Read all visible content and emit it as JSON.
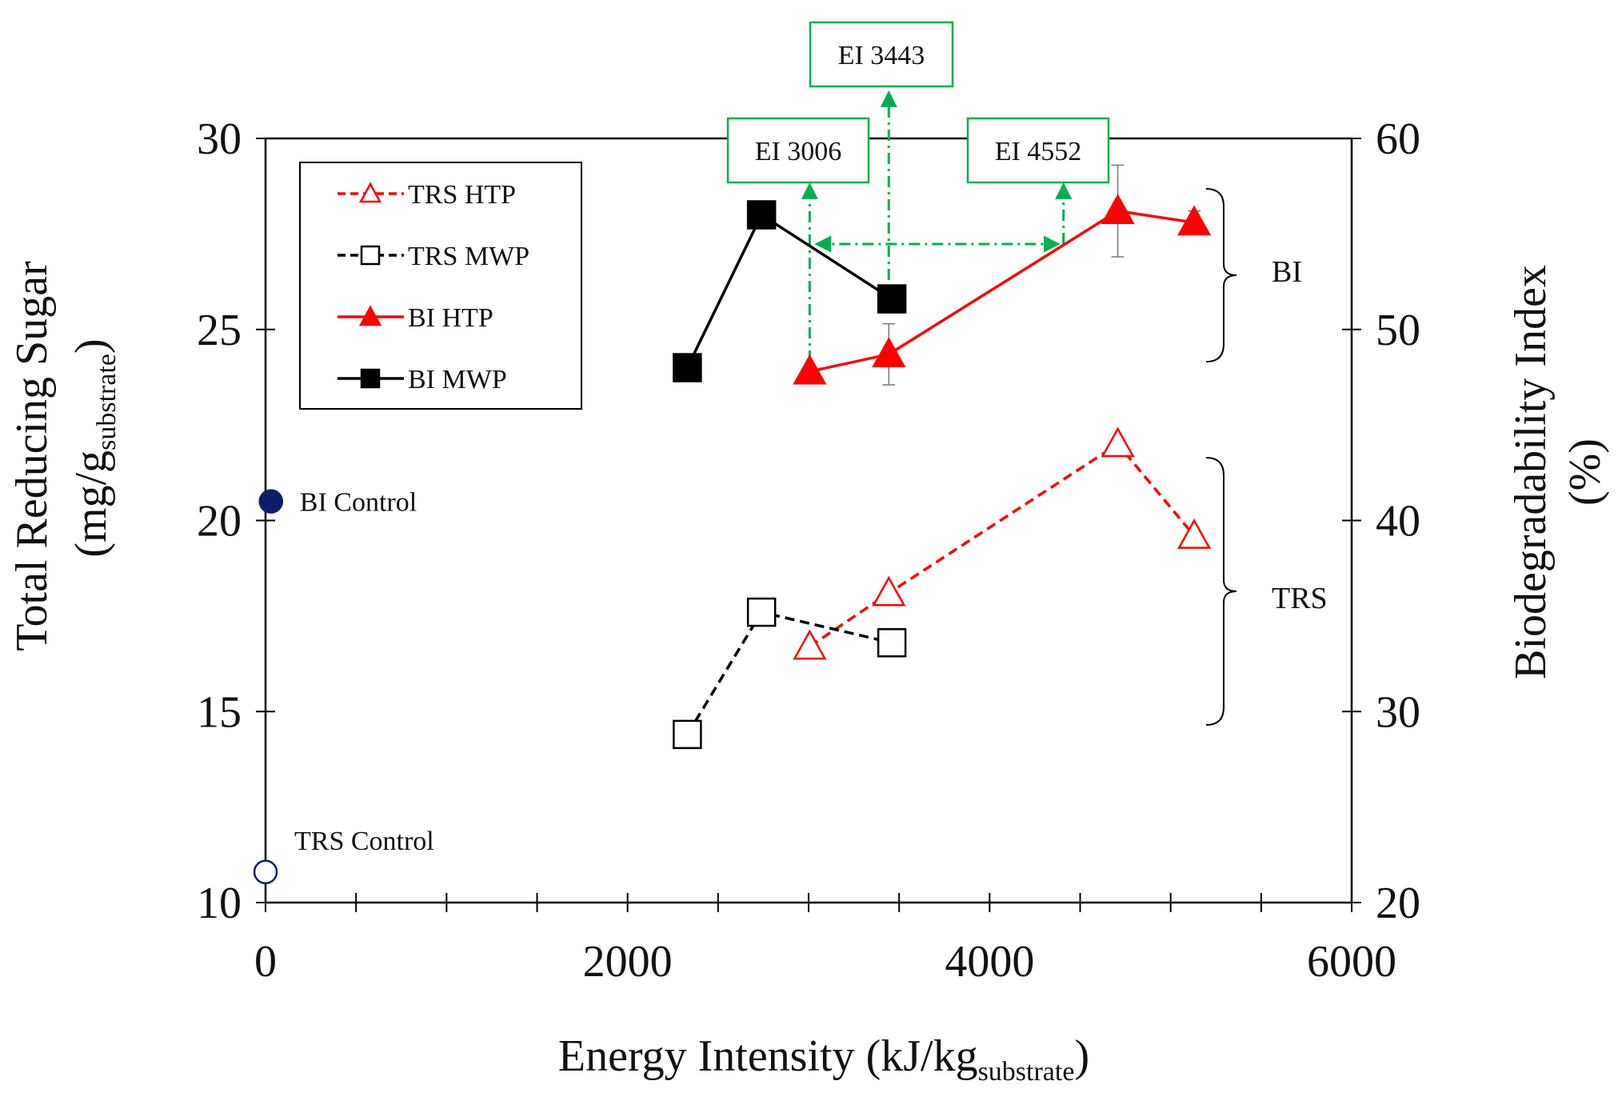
{
  "chart_data": {
    "type": "line",
    "xlabel": "Energy Intensity (kJ/kg",
    "xlabel_sub": "substrate",
    "xlabel_end": ")",
    "ylabel_left_line1": "Total Reducing Sugar",
    "ylabel_left_line2": "(mg/g",
    "ylabel_left_sub": "substrate",
    "ylabel_left_end": ")",
    "ylabel_right_line1": "Biodegradability Index",
    "ylabel_right_line2": "(%)",
    "xlim": [
      0,
      6000
    ],
    "ylim_left": [
      10,
      30
    ],
    "ylim_right": [
      20,
      60
    ],
    "x_ticks": [
      "0",
      "2000",
      "4000",
      "6000"
    ],
    "y_left_ticks": [
      "10",
      "15",
      "20",
      "25",
      "30"
    ],
    "y_right_ticks": [
      "20",
      "30",
      "40",
      "50",
      "60"
    ],
    "series": [
      {
        "name": "TRS HTP",
        "axis": "left",
        "color": "#ff0000",
        "dash": true,
        "marker": "triangle-open",
        "x": [
          3006,
          3443,
          4708,
          5130
        ],
        "y": [
          16.7,
          18.1,
          22.0,
          19.6
        ],
        "err": [
          0,
          0,
          0,
          0
        ]
      },
      {
        "name": "TRS MWP",
        "axis": "left",
        "color": "#000000",
        "dash": true,
        "marker": "square-open",
        "x": [
          2330,
          2740,
          3460
        ],
        "y": [
          14.4,
          17.6,
          16.8
        ],
        "err": [
          0,
          0,
          0
        ]
      },
      {
        "name": "BI HTP",
        "axis": "right",
        "color": "#ff0000",
        "dash": false,
        "marker": "triangle-filled",
        "x": [
          3006,
          3443,
          4708,
          5130
        ],
        "y": [
          47.8,
          48.7,
          56.2,
          55.6
        ],
        "err": [
          0,
          1.6,
          2.4,
          0.6
        ]
      },
      {
        "name": "BI MWP",
        "axis": "right",
        "color": "#000000",
        "dash": false,
        "marker": "square-filled",
        "x": [
          2330,
          2740,
          3460
        ],
        "y": [
          48.0,
          56.0,
          51.6
        ],
        "err": [
          0,
          0.2,
          0.6
        ]
      }
    ],
    "controls": [
      {
        "label": "BI Control",
        "axis": "right",
        "x": 30,
        "y": 41.0,
        "filled": true,
        "color": "#0a1f66"
      },
      {
        "label": "TRS Control",
        "axis": "left",
        "x": 0,
        "y": 10.8,
        "filled": false,
        "color": "#0a1f66"
      }
    ],
    "annotations": [
      {
        "label": "EI 3006",
        "x": 3006
      },
      {
        "label": "EI 3443",
        "x": 3443
      },
      {
        "label": "EI 4552",
        "x": 4408
      }
    ],
    "group_labels": {
      "bi": "BI",
      "trs": "TRS"
    },
    "legend_position": "top-left",
    "annotation_color": "#00b050"
  }
}
